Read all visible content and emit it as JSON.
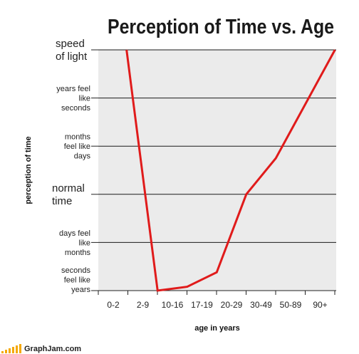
{
  "chart_data": {
    "type": "line",
    "title": "Perception of Time vs. Age",
    "xlabel": "age in years",
    "ylabel": "perception of time",
    "categories": [
      "0-2",
      "2-9",
      "10-16",
      "17-19",
      "20-29",
      "30-49",
      "50-89",
      "90+"
    ],
    "y_levels": [
      {
        "lines": [
          "seconds",
          "feel like",
          "years"
        ],
        "size": "small"
      },
      {
        "lines": [
          "days feel",
          "like",
          "months"
        ],
        "size": "small"
      },
      {
        "lines": [
          "normal",
          "time"
        ],
        "size": "large"
      },
      {
        "lines": [
          "months",
          "feel like",
          "days"
        ],
        "size": "small"
      },
      {
        "lines": [
          "years feel",
          "like",
          "seconds"
        ],
        "size": "small"
      },
      {
        "lines": [
          "speed",
          "of light"
        ],
        "size": "large"
      }
    ],
    "ylim": [
      0,
      5
    ],
    "series": [
      {
        "color": "#e01b1b",
        "points": [
          {
            "x": 0.45,
            "y": 5.0
          },
          {
            "x": 1.5,
            "y": 0.0
          },
          {
            "x": 2.5,
            "y": 0.08
          },
          {
            "x": 3.5,
            "y": 0.38
          },
          {
            "x": 4.5,
            "y": 2.0
          },
          {
            "x": 5.5,
            "y": 2.75
          },
          {
            "x": 7.5,
            "y": 5.0
          }
        ]
      }
    ],
    "grid": true,
    "plot_background": "#ebebeb",
    "gridline_color": "#1a1a1a"
  },
  "footer": {
    "brand": "GraphJam.com",
    "bar_color": "#f5a800"
  }
}
